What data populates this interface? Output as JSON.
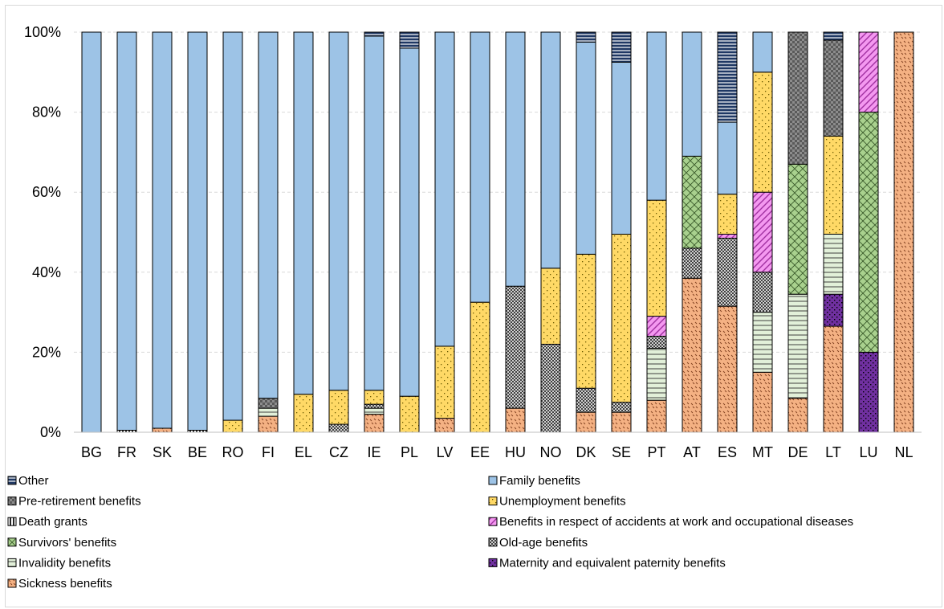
{
  "chart_data": {
    "type": "bar",
    "stacked": true,
    "percent_stacked": true,
    "grid": true,
    "legend_position": "bottom",
    "ylim": [
      0,
      100
    ],
    "y_ticks": [
      "0%",
      "20%",
      "40%",
      "60%",
      "80%",
      "100%"
    ],
    "categories": [
      "BG",
      "FR",
      "SK",
      "BE",
      "RO",
      "FI",
      "EL",
      "CZ",
      "IE",
      "PL",
      "LV",
      "EE",
      "HU",
      "NO",
      "DK",
      "SE",
      "PT",
      "AT",
      "ES",
      "MT",
      "DE",
      "LT",
      "LU",
      "NL"
    ],
    "series": [
      {
        "name": "Sickness benefits",
        "key": "sickness",
        "color": "#f4b183",
        "values": [
          0,
          0,
          1,
          0,
          0,
          4,
          0,
          0,
          4.5,
          0,
          3.5,
          0,
          6,
          0,
          5,
          5,
          8,
          38.5,
          31.5,
          15,
          8.5,
          26.5,
          0,
          100
        ]
      },
      {
        "name": "Maternity and equivalent paternity benefits",
        "key": "maternity",
        "color": "#7030a0",
        "values": [
          0,
          0,
          0,
          0,
          0,
          0,
          0,
          0,
          0,
          0,
          0,
          0,
          0,
          0,
          0,
          0,
          0,
          0,
          0,
          0,
          0,
          8,
          20,
          0
        ]
      },
      {
        "name": "Invalidity benefits",
        "key": "invalidity",
        "color": "#e2f0d9",
        "values": [
          0,
          0,
          0,
          0,
          0,
          2,
          0,
          0,
          1.5,
          0,
          0,
          0,
          0,
          0,
          0,
          0,
          13,
          0,
          0,
          15,
          26,
          15,
          0,
          0
        ]
      },
      {
        "name": "Old-age benefits",
        "key": "oldage",
        "color": "#a6a6a6",
        "values": [
          0,
          0,
          0,
          0,
          0,
          0,
          0,
          2,
          1,
          0,
          0,
          0,
          30.5,
          22,
          6,
          2.5,
          3,
          7.5,
          17,
          10,
          0,
          0,
          0,
          0
        ]
      },
      {
        "name": "Survivors' benefits",
        "key": "survivors",
        "color": "#a9d18e",
        "values": [
          0,
          0,
          0,
          0,
          0,
          0,
          0,
          0,
          0,
          0,
          0,
          0,
          0,
          0,
          0,
          0,
          0,
          23,
          0,
          0,
          32.5,
          0,
          60,
          0
        ]
      },
      {
        "name": "Benefits in respect of accidents at work and occupational diseases",
        "key": "accidents",
        "color": "#f498f0",
        "values": [
          0,
          0,
          0,
          0,
          0,
          0,
          0,
          0,
          0,
          0,
          0,
          0,
          0,
          0,
          0,
          0,
          5,
          0,
          1,
          20,
          0,
          0,
          20,
          0
        ]
      },
      {
        "name": "Death grants",
        "key": "death",
        "color": "#262626",
        "values": [
          0,
          0.5,
          0,
          0.5,
          0,
          0,
          0,
          0,
          0,
          0,
          0,
          0,
          0,
          0,
          0,
          0,
          0,
          0,
          0,
          0,
          0,
          0,
          0,
          0
        ]
      },
      {
        "name": "Unemployment benefits",
        "key": "unemployment",
        "color": "#ffd966",
        "values": [
          0,
          0,
          0,
          0,
          3,
          0,
          9.5,
          8.5,
          3.5,
          9,
          18,
          32.5,
          0,
          19,
          33.5,
          42,
          29,
          0,
          10,
          30,
          0,
          24.5,
          0,
          0
        ]
      },
      {
        "name": "Pre-retirement benefits",
        "key": "preretire",
        "color": "#808080",
        "values": [
          0,
          0,
          0,
          0,
          0,
          2.5,
          0,
          0,
          0,
          0,
          0,
          0,
          0,
          0,
          0,
          0,
          0,
          0,
          0,
          0,
          33,
          24,
          0,
          0
        ]
      },
      {
        "name": "Family benefits",
        "key": "family",
        "color": "#9dc3e6",
        "values": [
          100,
          99.5,
          99,
          99.5,
          97,
          91.5,
          90.5,
          89.5,
          88.5,
          87,
          78.5,
          67.5,
          63.5,
          59,
          53,
          43,
          42,
          31,
          18,
          10,
          0,
          0,
          0,
          0
        ]
      },
      {
        "name": "Other",
        "key": "other",
        "color": "#1f3864",
        "values": [
          0,
          0,
          0,
          0,
          0,
          0,
          0,
          0,
          1,
          4,
          0,
          0,
          0,
          0,
          2.5,
          7.5,
          0,
          0,
          22.5,
          0,
          0,
          2,
          0,
          0
        ]
      }
    ],
    "legend_order": [
      "other",
      "family",
      "preretire",
      "unemployment",
      "death",
      "accidents",
      "survivors",
      "oldage",
      "invalidity",
      "maternity",
      "sickness"
    ]
  }
}
